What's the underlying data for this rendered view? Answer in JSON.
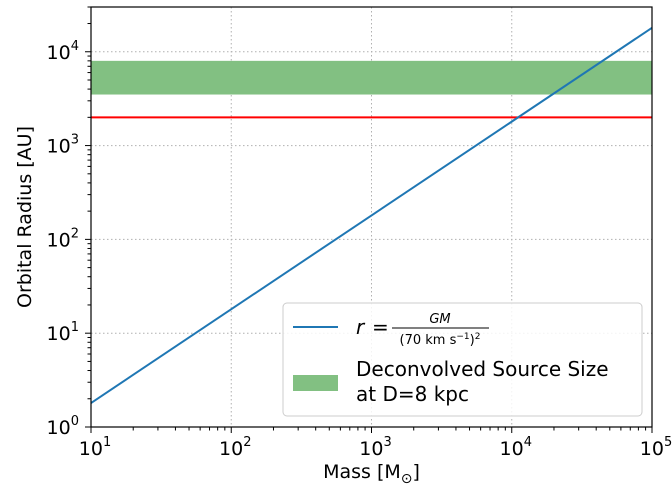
{
  "chart_data": {
    "type": "line",
    "xlabel": "Mass [M",
    "xlabel_sub": "⊙",
    "xlabel_close": "]",
    "ylabel": "Orbital Radius [AU]",
    "xscale": "log",
    "yscale": "log",
    "xlim": [
      10,
      100000
    ],
    "ylim": [
      1,
      30000
    ],
    "grid": true,
    "x_ticks": [
      {
        "value": 10,
        "base": "10",
        "exp": "1"
      },
      {
        "value": 100,
        "base": "10",
        "exp": "2"
      },
      {
        "value": 1000,
        "base": "10",
        "exp": "3"
      },
      {
        "value": 10000,
        "base": "10",
        "exp": "4"
      },
      {
        "value": 100000,
        "base": "10",
        "exp": "5"
      }
    ],
    "y_ticks": [
      {
        "value": 1,
        "base": "10",
        "exp": "0"
      },
      {
        "value": 10,
        "base": "10",
        "exp": "1"
      },
      {
        "value": 100,
        "base": "10",
        "exp": "2"
      },
      {
        "value": 1000,
        "base": "10",
        "exp": "3"
      },
      {
        "value": 10000,
        "base": "10",
        "exp": "4"
      }
    ],
    "series": [
      {
        "legend_label": "r = GM / (70 km s⁻¹)²",
        "color": "#1f77b4",
        "x": [
          10,
          100000
        ],
        "y": [
          1.8,
          18000
        ]
      }
    ],
    "band": {
      "legend_label_line1": "Deconvolved Source Size",
      "legend_label_line2": "at D=8 kpc",
      "y_low": 3500,
      "y_high": 8000,
      "color": "#82c082"
    },
    "hline": {
      "y": 2000,
      "color": "#ff0000"
    },
    "legend": {
      "placement": "lower-right",
      "formula_r": "r",
      "formula_eq": "=",
      "formula_num": "GM",
      "formula_den": "(70 km s",
      "formula_den_exp": "−1",
      "formula_den_close": ")",
      "formula_den_sq": "2"
    }
  }
}
